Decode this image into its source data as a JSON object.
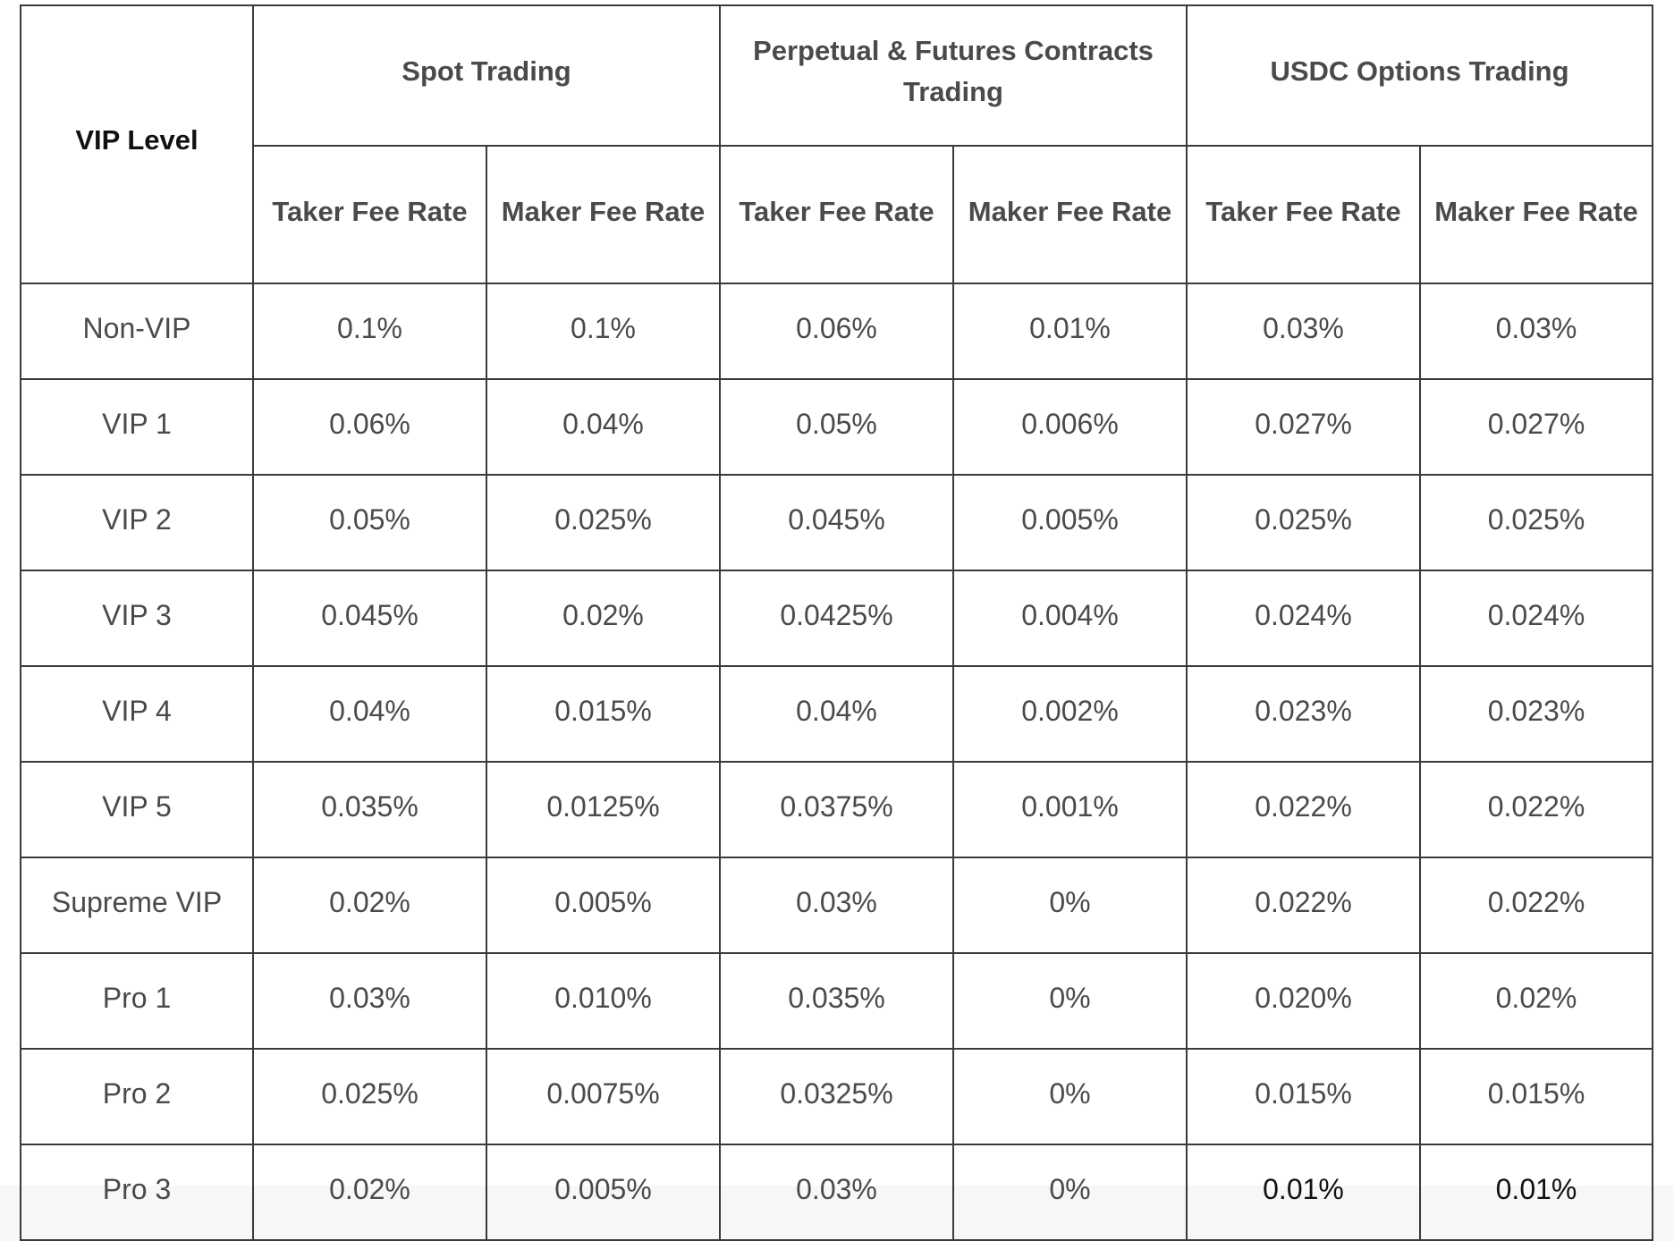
{
  "table": {
    "vip_level_header": "VIP Level",
    "groups": [
      "Spot Trading",
      "Perpetual & Futures Contracts Trading",
      "USDC Options Trading"
    ],
    "sub_headers": [
      "Taker Fee Rate",
      "Maker Fee Rate",
      "Taker Fee Rate",
      "Maker Fee Rate",
      "Taker Fee Rate",
      "Maker Fee Rate"
    ],
    "rows": [
      {
        "level": "Non-VIP",
        "values": [
          "0.1%",
          "0.1%",
          "0.06%",
          "0.01%",
          "0.03%",
          "0.03%"
        ]
      },
      {
        "level": "VIP 1",
        "values": [
          "0.06%",
          "0.04%",
          "0.05%",
          "0.006%",
          "0.027%",
          "0.027%"
        ]
      },
      {
        "level": "VIP 2",
        "values": [
          "0.05%",
          "0.025%",
          "0.045%",
          "0.005%",
          "0.025%",
          "0.025%"
        ]
      },
      {
        "level": "VIP 3",
        "values": [
          "0.045%",
          "0.02%",
          "0.0425%",
          "0.004%",
          "0.024%",
          "0.024%"
        ]
      },
      {
        "level": "VIP 4",
        "values": [
          "0.04%",
          "0.015%",
          "0.04%",
          "0.002%",
          "0.023%",
          "0.023%"
        ]
      },
      {
        "level": "VIP 5",
        "values": [
          "0.035%",
          "0.0125%",
          "0.0375%",
          "0.001%",
          "0.022%",
          "0.022%"
        ]
      },
      {
        "level": "Supreme VIP",
        "values": [
          "0.02%",
          "0.005%",
          "0.03%",
          "0%",
          "0.022%",
          "0.022%"
        ]
      },
      {
        "level": "Pro 1",
        "values": [
          "0.03%",
          "0.010%",
          "0.035%",
          "0%",
          "0.020%",
          "0.02%"
        ]
      },
      {
        "level": "Pro 2",
        "values": [
          "0.025%",
          "0.0075%",
          "0.0325%",
          "0%",
          "0.015%",
          "0.015%"
        ]
      },
      {
        "level": "Pro 3",
        "values": [
          "0.02%",
          "0.005%",
          "0.03%",
          "0%",
          "0.01%",
          "0.01%"
        ]
      }
    ]
  }
}
